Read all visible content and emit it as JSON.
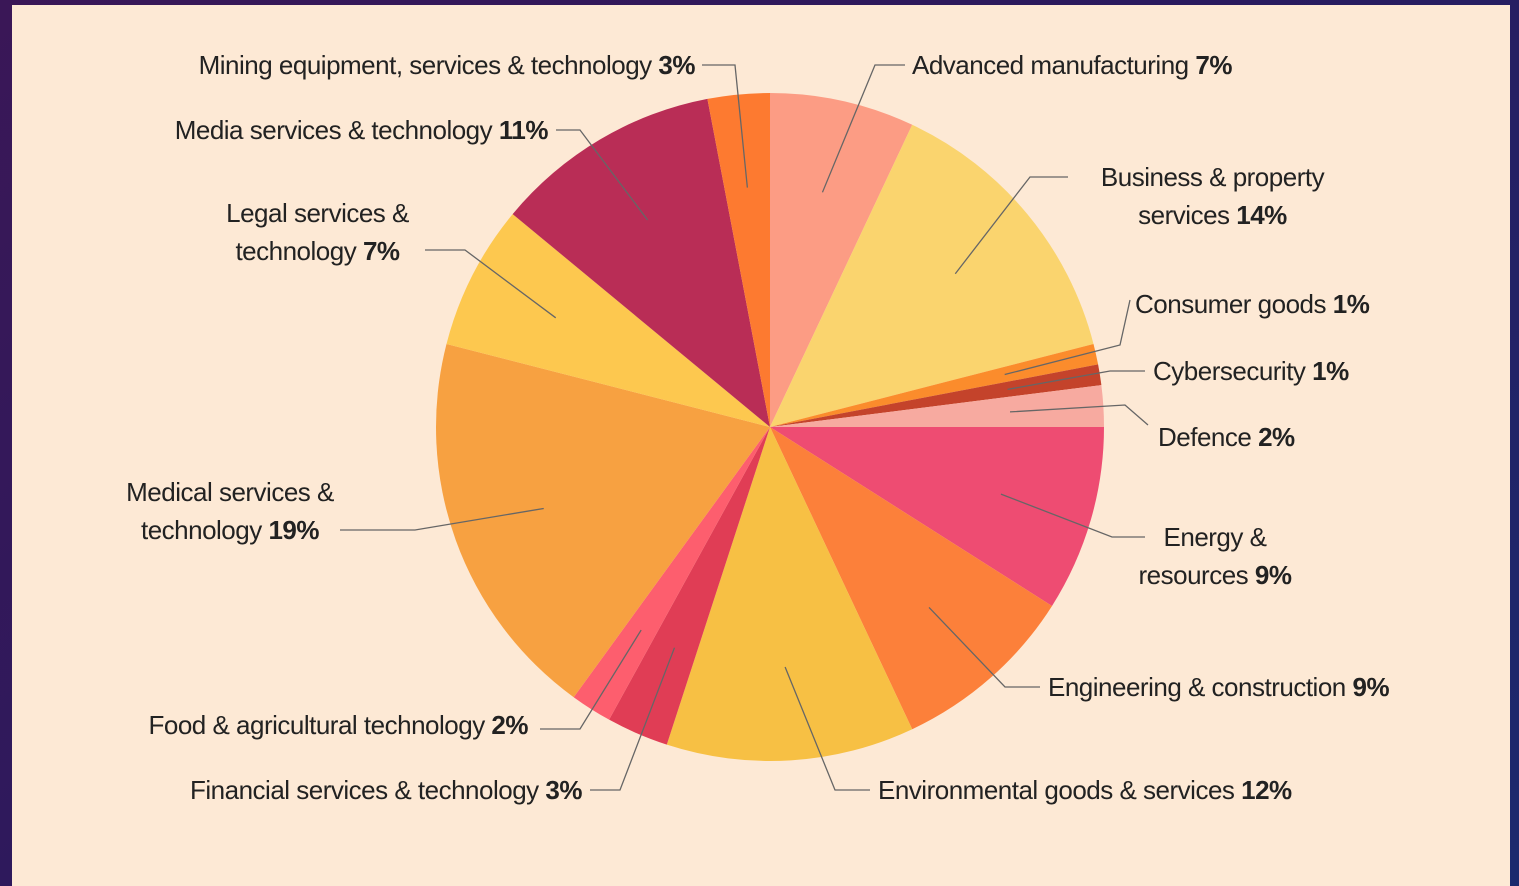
{
  "chart_data": {
    "type": "pie",
    "categories": [
      "Advanced manufacturing",
      "Business & property services",
      "Consumer goods",
      "Cybersecurity",
      "Defence",
      "Energy & resources",
      "Engineering & construction",
      "Environmental goods & services",
      "Financial services & technology",
      "Food & agricultural technology",
      "Medical services & technology",
      "Legal services & technology",
      "Media services & technology",
      "Mining equipment, services & technology"
    ],
    "values": [
      7,
      14,
      1,
      1,
      2,
      9,
      9,
      12,
      3,
      2,
      19,
      7,
      11,
      3
    ],
    "value_labels": [
      "7%",
      "14%",
      "1%",
      "1%",
      "2%",
      "9%",
      "9%",
      "12%",
      "3%",
      "2%",
      "19%",
      "7%",
      "11%",
      "3%"
    ],
    "colors": [
      "#fc9c84",
      "#fad46e",
      "#fb8c2c",
      "#c4432b",
      "#f7aaa0",
      "#ee4c72",
      "#fc803a",
      "#f7c044",
      "#e03d55",
      "#fd5e6e",
      "#f7a141",
      "#fdc84f",
      "#b92d56",
      "#fd7a30"
    ]
  }
}
